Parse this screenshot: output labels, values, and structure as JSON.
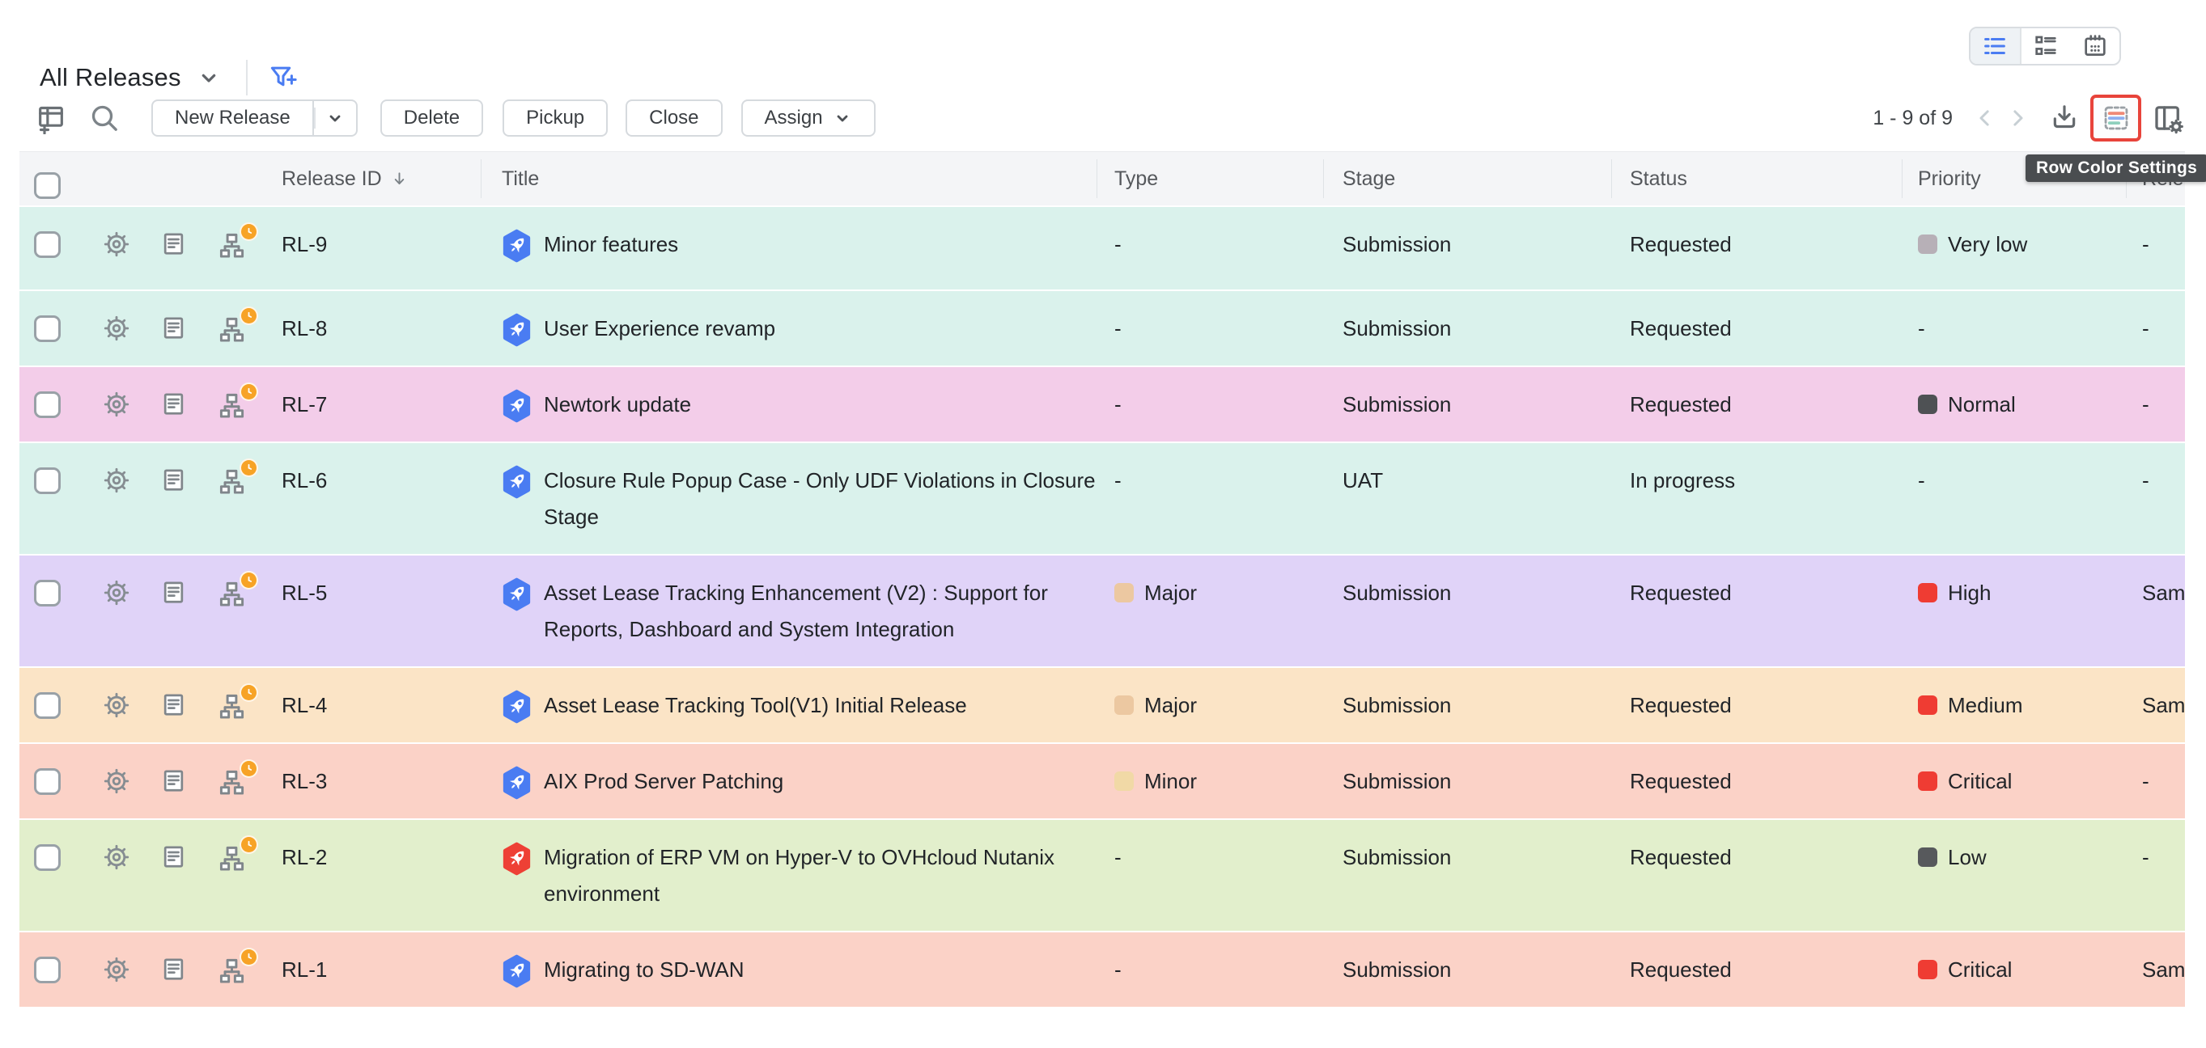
{
  "view_header": {
    "title": "All Releases"
  },
  "toolbar": {
    "new_release": "New Release",
    "delete": "Delete",
    "pickup": "Pickup",
    "close": "Close",
    "assign": "Assign",
    "pagination": "1 - 9 of 9"
  },
  "tooltip": "Row Color Settings",
  "icons": {
    "view_switcher": [
      "list-view-icon",
      "card-view-icon",
      "calendar-view-icon"
    ],
    "toolbar_left": [
      "add-table-icon",
      "search-icon"
    ],
    "toolbar_right": [
      "prev-page-icon",
      "next-page-icon",
      "export-icon",
      "row-color-settings-icon",
      "column-settings-icon"
    ],
    "filter": "filter-add-icon"
  },
  "colors": {
    "accent_blue": "#4a7cf2",
    "highlight_red": "#e8443b",
    "header_bg": "#f4f5f7",
    "tooltip_bg": "#4a4d50",
    "badge_orange": "#f7a326"
  },
  "table": {
    "columns": {
      "release_id": "Release ID",
      "title": "Title",
      "type": "Type",
      "stage": "Stage",
      "status": "Status",
      "priority": "Priority",
      "release_engineer": "Rele"
    },
    "rows": [
      {
        "id": "RL-9",
        "title": "Minor features",
        "title_icon_color": "#4a7cf2",
        "type": "-",
        "type_color": null,
        "stage": "Submission",
        "status": "Requested",
        "priority": "Very low",
        "priority_color": "#b7b0b7",
        "release_engineer": "-",
        "row_color": "#daf2ec"
      },
      {
        "id": "RL-8",
        "title": "User Experience revamp",
        "title_icon_color": "#4a7cf2",
        "type": "-",
        "type_color": null,
        "stage": "Submission",
        "status": "Requested",
        "priority": "-",
        "priority_color": null,
        "release_engineer": "-",
        "row_color": "#daf2ec"
      },
      {
        "id": "RL-7",
        "title": "Newtork update",
        "title_icon_color": "#4a7cf2",
        "type": "-",
        "type_color": null,
        "stage": "Submission",
        "status": "Requested",
        "priority": "Normal",
        "priority_color": "#4e5154",
        "release_engineer": "-",
        "row_color": "#f3cde9"
      },
      {
        "id": "RL-6",
        "title": "Closure Rule Popup Case - Only UDF Violations in Closure Stage",
        "title_icon_color": "#4a7cf2",
        "type": "-",
        "type_color": null,
        "stage": "UAT",
        "status": "In progress",
        "priority": "-",
        "priority_color": null,
        "release_engineer": "-",
        "row_color": "#daf2ec"
      },
      {
        "id": "RL-5",
        "title": "Asset Lease Tracking Enhancement (V2) : Support for Reports, Dashboard and System Integration",
        "title_icon_color": "#4a7cf2",
        "type": "Major",
        "type_color": "#ecc8a1",
        "stage": "Submission",
        "status": "Requested",
        "priority": "High",
        "priority_color": "#ef3c33",
        "release_engineer": "Sam",
        "row_color": "#e0d3f8"
      },
      {
        "id": "RL-4",
        "title": "Asset Lease Tracking Tool(V1) Initial Release",
        "title_icon_color": "#4a7cf2",
        "type": "Major",
        "type_color": "#ecc8a1",
        "stage": "Submission",
        "status": "Requested",
        "priority": "Medium",
        "priority_color": "#ef3c33",
        "release_engineer": "Sam",
        "row_color": "#fbe4c6"
      },
      {
        "id": "RL-3",
        "title": "AIX Prod Server Patching",
        "title_icon_color": "#4a7cf2",
        "type": "Minor",
        "type_color": "#f1d9a6",
        "stage": "Submission",
        "status": "Requested",
        "priority": "Critical",
        "priority_color": "#ef3c33",
        "release_engineer": "-",
        "row_color": "#fbd2c7"
      },
      {
        "id": "RL-2",
        "title": "Migration of ERP VM on Hyper-V to OVHcloud Nutanix environment",
        "title_icon_color": "#ee4035",
        "type": "-",
        "type_color": null,
        "stage": "Submission",
        "status": "Requested",
        "priority": "Low",
        "priority_color": "#57595c",
        "release_engineer": "-",
        "row_color": "#e2efcc"
      },
      {
        "id": "RL-1",
        "title": "Migrating to SD-WAN",
        "title_icon_color": "#4a7cf2",
        "type": "-",
        "type_color": null,
        "stage": "Submission",
        "status": "Requested",
        "priority": "Critical",
        "priority_color": "#ef3c33",
        "release_engineer": "Sam",
        "row_color": "#fbd2c7"
      }
    ]
  }
}
